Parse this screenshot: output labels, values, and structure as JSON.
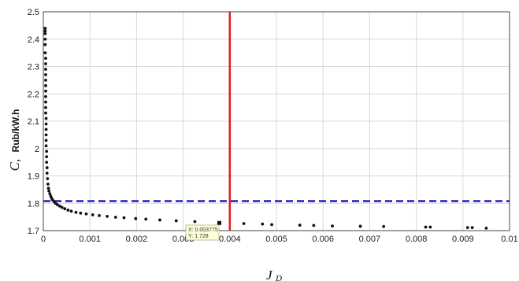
{
  "chart_data": {
    "type": "scatter",
    "xlabel": "J",
    "xlabel_subscript": "D",
    "ylabel": "C,",
    "ylabel_unit": "Rub/kW.h",
    "xlim": [
      0,
      0.01
    ],
    "ylim": [
      1.7,
      2.5
    ],
    "grid": true,
    "x_ticks": [
      "0",
      "0.001",
      "0.002",
      "0.003",
      "0.004",
      "0.005",
      "0.006",
      "0.007",
      "0.008",
      "0.009",
      "0.01"
    ],
    "y_ticks": [
      "1.7",
      "1.8",
      "1.9",
      "2",
      "2.1",
      "2.2",
      "2.3",
      "2.4",
      "2.5"
    ],
    "vertical_line": {
      "x": 0.004,
      "color": "#e31a1c"
    },
    "horizontal_line": {
      "y": 1.808,
      "color": "#1f1fbf",
      "style": "dashed"
    },
    "datatip": {
      "x_label": "X: 0.003775",
      "y_label": "Y: 1.728",
      "x": 0.003775,
      "y": 1.728
    },
    "marker_color": "#111111",
    "series": [
      {
        "points": [
          [
            4e-05,
            2.44
          ],
          [
            4e-05,
            2.43
          ],
          [
            4e-05,
            2.42
          ],
          [
            4e-05,
            2.4
          ],
          [
            4e-05,
            2.38
          ],
          [
            4e-05,
            2.35
          ],
          [
            5e-05,
            2.33
          ],
          [
            5e-05,
            2.31
          ],
          [
            5e-05,
            2.29
          ],
          [
            5e-05,
            2.27
          ],
          [
            5e-05,
            2.25
          ],
          [
            5e-05,
            2.23
          ],
          [
            5e-05,
            2.21
          ],
          [
            5e-05,
            2.19
          ],
          [
            5e-05,
            2.17
          ],
          [
            5e-05,
            2.15
          ],
          [
            5e-05,
            2.13
          ],
          [
            6e-05,
            2.11
          ],
          [
            6e-05,
            2.09
          ],
          [
            6e-05,
            2.07
          ],
          [
            6e-05,
            2.05
          ],
          [
            6e-05,
            2.03
          ],
          [
            6e-05,
            2.01
          ],
          [
            7e-05,
            1.99
          ],
          [
            7e-05,
            1.97
          ],
          [
            7e-05,
            1.95
          ],
          [
            8e-05,
            1.93
          ],
          [
            8e-05,
            1.91
          ],
          [
            9e-05,
            1.89
          ],
          [
            0.0001,
            1.87
          ],
          [
            0.00011,
            1.855
          ],
          [
            0.00012,
            1.845
          ],
          [
            0.00014,
            1.835
          ],
          [
            0.00016,
            1.826
          ],
          [
            0.00018,
            1.818
          ],
          [
            0.0002,
            1.812
          ],
          [
            0.00023,
            1.806
          ],
          [
            0.00026,
            1.8
          ],
          [
            0.0003,
            1.795
          ],
          [
            0.00035,
            1.79
          ],
          [
            0.0004,
            1.785
          ],
          [
            0.00046,
            1.78
          ],
          [
            0.00053,
            1.775
          ],
          [
            0.0006,
            1.771
          ],
          [
            0.0007,
            1.767
          ],
          [
            0.0008,
            1.764
          ],
          [
            0.00092,
            1.761
          ],
          [
            0.00106,
            1.758
          ],
          [
            0.0012,
            1.755
          ],
          [
            0.00137,
            1.752
          ],
          [
            0.00155,
            1.749
          ],
          [
            0.00173,
            1.747
          ],
          [
            0.00198,
            1.744
          ],
          [
            0.0022,
            1.742
          ],
          [
            0.0025,
            1.739
          ],
          [
            0.00285,
            1.736
          ],
          [
            0.00325,
            1.733
          ],
          [
            0.003775,
            1.728
          ],
          [
            0.0043,
            1.726
          ],
          [
            0.0047,
            1.724
          ],
          [
            0.0049,
            1.722
          ],
          [
            0.0055,
            1.72
          ],
          [
            0.0058,
            1.719
          ],
          [
            0.0062,
            1.717
          ],
          [
            0.0068,
            1.716
          ],
          [
            0.0073,
            1.715
          ],
          [
            0.0082,
            1.713
          ],
          [
            0.0083,
            1.713
          ],
          [
            0.0091,
            1.711
          ],
          [
            0.0092,
            1.711
          ],
          [
            0.0095,
            1.709
          ]
        ]
      }
    ]
  }
}
